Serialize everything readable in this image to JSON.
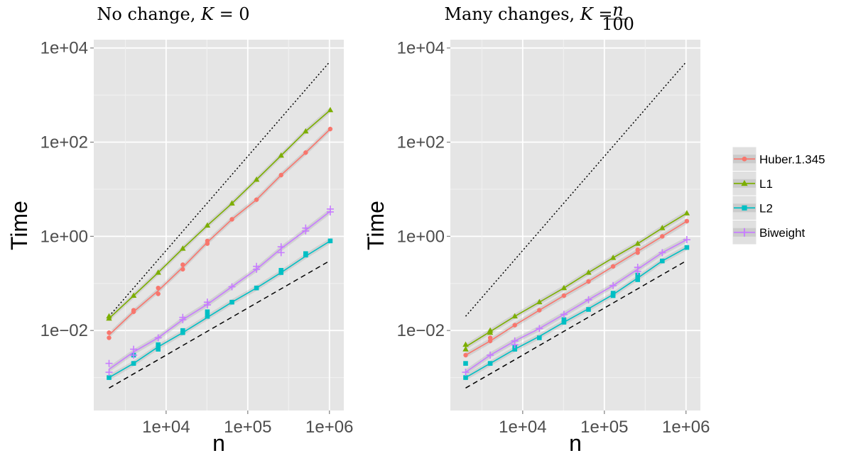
{
  "panels": [
    {
      "title": "No change, K = 0",
      "title_parts": {
        "text": "No change, ",
        "var": "K",
        "eq": " = 0"
      },
      "xlabel": "n",
      "ylabel": "Time"
    },
    {
      "title": "Many changes, K = n/100",
      "title_parts": {
        "text": "Many changes, ",
        "var": "K",
        "eq": " = ",
        "num": "n",
        "den": "100"
      },
      "xlabel": "n",
      "ylabel": "Time"
    }
  ],
  "legend": {
    "entries": [
      "Huber.1.345",
      "L1",
      "L2",
      "Biweight"
    ]
  },
  "colors": {
    "Huber.1.345": "#f8766d",
    "L1": "#7cae00",
    "L2": "#00bfc4",
    "Biweight": "#c77cff",
    "panel_bg": "#e5e5e5",
    "grid": "#ffffff"
  },
  "chart_data": [
    {
      "type": "line",
      "title": "No change, K = 0",
      "xlabel": "n",
      "ylabel": "Time",
      "x_scale": "log10",
      "y_scale": "log10",
      "xlim": [
        1300,
        1500000
      ],
      "ylim": [
        0.0002,
        15000
      ],
      "x_ticks": [
        10000,
        100000,
        1000000
      ],
      "x_tick_labels": [
        "1e+04",
        "1e+05",
        "1e+06"
      ],
      "y_ticks": [
        0.01,
        1,
        100,
        10000
      ],
      "y_tick_labels": [
        "1e−02",
        "1e+00",
        "1e+02",
        "1e+04"
      ],
      "grid": true,
      "legend_position": "right",
      "x": [
        2000,
        4000,
        8000,
        16000,
        32000,
        64000,
        128000,
        256000,
        512000,
        1024000
      ],
      "series": [
        {
          "name": "Huber.1.345",
          "marker": "circle",
          "values": [
            0.008,
            0.025,
            0.07,
            0.22,
            0.75,
            2.3,
            6,
            20,
            60,
            190
          ],
          "points": [
            [
              2000,
              0.007
            ],
            [
              2000,
              0.009
            ],
            [
              4000,
              0.025
            ],
            [
              4000,
              0.027
            ],
            [
              8000,
              0.06
            ],
            [
              8000,
              0.08
            ],
            [
              16000,
              0.2
            ],
            [
              16000,
              0.25
            ],
            [
              32000,
              0.7
            ],
            [
              32000,
              0.8
            ],
            [
              64000,
              2.3
            ],
            [
              128000,
              6
            ],
            [
              256000,
              20
            ],
            [
              512000,
              60
            ],
            [
              1024000,
              190
            ]
          ]
        },
        {
          "name": "L1",
          "marker": "triangle",
          "values": [
            0.018,
            0.055,
            0.17,
            0.55,
            1.7,
            5,
            16,
            52,
            170,
            480
          ],
          "points": [
            [
              2000,
              0.018
            ],
            [
              2000,
              0.02
            ],
            [
              4000,
              0.055
            ],
            [
              8000,
              0.17
            ],
            [
              16000,
              0.55
            ],
            [
              32000,
              1.7
            ],
            [
              64000,
              5
            ],
            [
              128000,
              16
            ],
            [
              256000,
              52
            ],
            [
              512000,
              170
            ],
            [
              1024000,
              480
            ]
          ]
        },
        {
          "name": "L2",
          "marker": "square",
          "values": [
            0.001,
            0.002,
            0.0045,
            0.009,
            0.019,
            0.04,
            0.08,
            0.17,
            0.38,
            0.8
          ],
          "points": [
            [
              2000,
              0.001
            ],
            [
              4000,
              0.002
            ],
            [
              4000,
              0.003
            ],
            [
              8000,
              0.004
            ],
            [
              8000,
              0.005
            ],
            [
              16000,
              0.009
            ],
            [
              16000,
              0.01
            ],
            [
              32000,
              0.02
            ],
            [
              32000,
              0.025
            ],
            [
              64000,
              0.04
            ],
            [
              128000,
              0.08
            ],
            [
              256000,
              0.17
            ],
            [
              256000,
              0.19
            ],
            [
              512000,
              0.4
            ],
            [
              512000,
              0.43
            ],
            [
              1024000,
              0.8
            ]
          ]
        },
        {
          "name": "Biweight",
          "marker": "plus",
          "values": [
            0.0015,
            0.0035,
            0.007,
            0.017,
            0.036,
            0.085,
            0.2,
            0.55,
            1.35,
            3.4
          ],
          "points": [
            [
              2000,
              0.002
            ],
            [
              2000,
              0.0013
            ],
            [
              4000,
              0.004
            ],
            [
              4000,
              0.003
            ],
            [
              8000,
              0.007
            ],
            [
              16000,
              0.017
            ],
            [
              16000,
              0.019
            ],
            [
              32000,
              0.035
            ],
            [
              32000,
              0.04
            ],
            [
              64000,
              0.085
            ],
            [
              128000,
              0.2
            ],
            [
              128000,
              0.23
            ],
            [
              256000,
              0.45
            ],
            [
              256000,
              0.6
            ],
            [
              512000,
              1.3
            ],
            [
              512000,
              1.5
            ],
            [
              1024000,
              3.3
            ],
            [
              1024000,
              3.8
            ]
          ]
        }
      ],
      "reference_lines": [
        {
          "style": "dotted",
          "x": [
            2000,
            1000000
          ],
          "y": [
            0.02,
            5000
          ]
        },
        {
          "style": "dashed",
          "x": [
            2000,
            1000000
          ],
          "y": [
            0.0006,
            0.3
          ]
        }
      ]
    },
    {
      "type": "line",
      "title": "Many changes, K = n/100",
      "xlabel": "n",
      "ylabel": "Time",
      "x_scale": "log10",
      "y_scale": "log10",
      "xlim": [
        1300,
        1500000
      ],
      "ylim": [
        0.0002,
        15000
      ],
      "x_ticks": [
        10000,
        100000,
        1000000
      ],
      "x_tick_labels": [
        "1e+04",
        "1e+05",
        "1e+06"
      ],
      "y_ticks": [
        0.01,
        1,
        100,
        10000
      ],
      "y_tick_labels": [
        "1e−02",
        "1e+00",
        "1e+02",
        "1e+04"
      ],
      "grid": true,
      "legend_position": "right",
      "x": [
        2000,
        4000,
        8000,
        16000,
        32000,
        64000,
        128000,
        256000,
        512000,
        1024000
      ],
      "series": [
        {
          "name": "Huber.1.345",
          "marker": "circle",
          "values": [
            0.003,
            0.006,
            0.013,
            0.027,
            0.055,
            0.11,
            0.23,
            0.48,
            1.0,
            2.1
          ],
          "points": [
            [
              2000,
              0.003
            ],
            [
              4000,
              0.006
            ],
            [
              4000,
              0.007
            ],
            [
              8000,
              0.013
            ],
            [
              16000,
              0.027
            ],
            [
              32000,
              0.055
            ],
            [
              64000,
              0.11
            ],
            [
              128000,
              0.23
            ],
            [
              256000,
              0.45
            ],
            [
              256000,
              0.52
            ],
            [
              512000,
              1.0
            ],
            [
              1024000,
              2.1
            ]
          ]
        },
        {
          "name": "L1",
          "marker": "triangle",
          "values": [
            0.0045,
            0.0095,
            0.02,
            0.04,
            0.08,
            0.17,
            0.35,
            0.7,
            1.5,
            3.1
          ],
          "points": [
            [
              2000,
              0.004
            ],
            [
              2000,
              0.005
            ],
            [
              4000,
              0.009
            ],
            [
              4000,
              0.01
            ],
            [
              8000,
              0.02
            ],
            [
              16000,
              0.04
            ],
            [
              32000,
              0.08
            ],
            [
              64000,
              0.17
            ],
            [
              128000,
              0.35
            ],
            [
              256000,
              0.7
            ],
            [
              512000,
              1.5
            ],
            [
              1024000,
              3.1
            ]
          ]
        },
        {
          "name": "L2",
          "marker": "square",
          "values": [
            0.001,
            0.002,
            0.004,
            0.0075,
            0.015,
            0.029,
            0.058,
            0.13,
            0.3,
            0.58
          ],
          "points": [
            [
              2000,
              0.001
            ],
            [
              2000,
              0.002
            ],
            [
              4000,
              0.002
            ],
            [
              8000,
              0.004
            ],
            [
              8000,
              0.0045
            ],
            [
              16000,
              0.007
            ],
            [
              32000,
              0.015
            ],
            [
              32000,
              0.017
            ],
            [
              64000,
              0.028
            ],
            [
              128000,
              0.055
            ],
            [
              128000,
              0.062
            ],
            [
              256000,
              0.12
            ],
            [
              256000,
              0.15
            ],
            [
              512000,
              0.3
            ],
            [
              1024000,
              0.58
            ]
          ]
        },
        {
          "name": "Biweight",
          "marker": "plus",
          "values": [
            0.0013,
            0.003,
            0.006,
            0.011,
            0.022,
            0.045,
            0.09,
            0.2,
            0.45,
            0.85
          ],
          "points": [
            [
              2000,
              0.0013
            ],
            [
              4000,
              0.003
            ],
            [
              8000,
              0.006
            ],
            [
              8000,
              0.005
            ],
            [
              16000,
              0.011
            ],
            [
              32000,
              0.022
            ],
            [
              64000,
              0.045
            ],
            [
              128000,
              0.09
            ],
            [
              256000,
              0.18
            ],
            [
              256000,
              0.22
            ],
            [
              512000,
              0.45
            ],
            [
              1024000,
              0.85
            ]
          ]
        }
      ],
      "reference_lines": [
        {
          "style": "dotted",
          "x": [
            2000,
            1000000
          ],
          "y": [
            0.02,
            5000
          ]
        },
        {
          "style": "dashed",
          "x": [
            2000,
            1000000
          ],
          "y": [
            0.0006,
            0.3
          ]
        }
      ]
    }
  ]
}
